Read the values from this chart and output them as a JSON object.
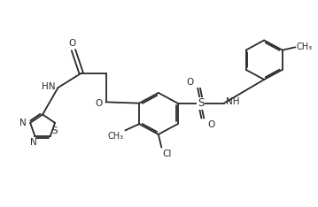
{
  "bg_color": "#ffffff",
  "line_color": "#2a2a2a",
  "line_width": 1.3,
  "font_size": 7.5,
  "xlim": [
    0,
    10
  ],
  "ylim": [
    0,
    7
  ]
}
